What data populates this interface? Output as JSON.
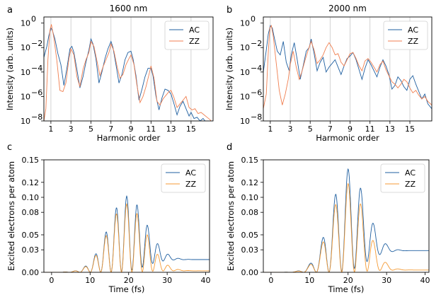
{
  "colors": {
    "AC": "#1f5fa0",
    "ZZ": "#f07f50",
    "ZZ_time": "#f49a34",
    "grid": "#c8c8c8"
  },
  "chart_data": [
    {
      "panel_letter": "a",
      "type": "line",
      "title": "1600 nm",
      "xlabel": "Harmonic order",
      "ylabel": "Intensity (arb. units)",
      "xlim": [
        0.3,
        17.2
      ],
      "ylog": true,
      "ylim_exp": [
        -8,
        0.5
      ],
      "xticks": [
        1,
        3,
        5,
        7,
        9,
        11,
        13,
        15
      ],
      "xtick_labels": [
        "1",
        "3",
        "5",
        "7",
        "9",
        "11",
        "13",
        "15"
      ],
      "yticks_exp": [
        -8,
        -6,
        -4,
        -2,
        0
      ],
      "ytick_labels": [
        "10",
        "10",
        "10",
        "10",
        "10"
      ],
      "ytick_sups": [
        "−8",
        "−6",
        "−4",
        "−2",
        "0"
      ],
      "vgrid": true,
      "legend_placement": "top-right",
      "series": [
        {
          "name": "AC",
          "x": [
            0.3,
            0.6,
            0.8,
            1.0,
            1.15,
            1.4,
            1.7,
            2.0,
            2.3,
            2.6,
            2.9,
            3.1,
            3.3,
            3.6,
            3.9,
            4.2,
            4.5,
            4.8,
            5.0,
            5.2,
            5.5,
            5.8,
            6.1,
            6.4,
            6.7,
            7.0,
            7.2,
            7.5,
            7.8,
            8.1,
            8.4,
            8.7,
            9.0,
            9.2,
            9.5,
            9.8,
            10.1,
            10.4,
            10.7,
            11.0,
            11.2,
            11.5,
            11.8,
            12.1,
            12.4,
            12.7,
            13.0,
            13.3,
            13.6,
            13.9,
            14.2,
            14.5,
            14.8,
            15.0,
            15.3,
            15.6,
            15.9,
            16.2,
            16.5,
            16.8,
            17.2
          ],
          "y_exp": [
            -2.8,
            -1.9,
            -1.0,
            -0.4,
            -0.6,
            -1.3,
            -2.5,
            -3.4,
            -5.1,
            -3.7,
            -2.1,
            -1.9,
            -2.4,
            -3.8,
            -5.3,
            -4.4,
            -3.2,
            -2.2,
            -1.3,
            -1.7,
            -2.9,
            -4.9,
            -4.0,
            -2.9,
            -2.1,
            -1.5,
            -2.0,
            -3.4,
            -4.9,
            -4.2,
            -3.0,
            -2.4,
            -2.3,
            -2.9,
            -4.3,
            -6.3,
            -5.4,
            -4.4,
            -3.7,
            -3.7,
            -4.3,
            -6.0,
            -7.1,
            -6.1,
            -5.4,
            -5.5,
            -5.8,
            -6.6,
            -7.5,
            -6.8,
            -6.4,
            -7.0,
            -7.6,
            -7.3,
            -7.8,
            -7.7,
            -8.0,
            -7.8,
            -8.1,
            -8.2,
            -8.3
          ]
        },
        {
          "name": "ZZ",
          "x": [
            0.3,
            0.5,
            0.7,
            0.9,
            1.05,
            1.3,
            1.6,
            1.9,
            2.2,
            2.5,
            2.8,
            3.0,
            3.3,
            3.6,
            3.9,
            4.2,
            4.5,
            4.8,
            5.0,
            5.3,
            5.6,
            5.9,
            6.2,
            6.5,
            6.8,
            7.0,
            7.3,
            7.6,
            7.9,
            8.2,
            8.5,
            8.8,
            9.0,
            9.3,
            9.6,
            9.9,
            10.2,
            10.5,
            10.8,
            11.0,
            11.3,
            11.6,
            11.9,
            12.2,
            12.5,
            12.8,
            13.0,
            13.3,
            13.6,
            13.9,
            14.2,
            14.5,
            14.8,
            15.1,
            15.4,
            15.7,
            16.0,
            16.3,
            16.6,
            16.9,
            17.2
          ],
          "y_exp": [
            -8.0,
            -7.0,
            -3.0,
            -0.6,
            -0.1,
            -1.2,
            -3.1,
            -5.5,
            -5.6,
            -4.9,
            -2.9,
            -2.1,
            -2.6,
            -4.4,
            -5.2,
            -3.8,
            -3.0,
            -2.4,
            -1.5,
            -1.9,
            -3.1,
            -4.3,
            -3.6,
            -3.0,
            -2.4,
            -1.7,
            -2.3,
            -3.5,
            -4.5,
            -4.2,
            -3.4,
            -2.9,
            -2.6,
            -3.4,
            -5.1,
            -6.5,
            -6.0,
            -5.2,
            -4.2,
            -3.5,
            -4.5,
            -6.4,
            -6.7,
            -6.2,
            -5.9,
            -5.6,
            -5.5,
            -6.1,
            -6.9,
            -6.6,
            -6.3,
            -6.0,
            -6.9,
            -7.1,
            -7.0,
            -7.4,
            -7.3,
            -7.5,
            -7.7,
            -7.9,
            -8.2
          ]
        }
      ]
    },
    {
      "panel_letter": "b",
      "type": "line",
      "title": "2000 nm",
      "xlabel": "Harmonic order",
      "ylabel": "Intensity (arb. units)",
      "xlim": [
        0.3,
        17.2
      ],
      "ylog": true,
      "ylim_exp": [
        -8,
        0.5
      ],
      "xticks": [
        1,
        3,
        5,
        7,
        9,
        11,
        13,
        15
      ],
      "xtick_labels": [
        "1",
        "3",
        "5",
        "7",
        "9",
        "11",
        "13",
        "15"
      ],
      "yticks_exp": [
        -8,
        -6,
        -4,
        -2,
        0
      ],
      "ytick_labels": [
        "10",
        "10",
        "10",
        "10",
        "10"
      ],
      "ytick_sups": [
        "−8",
        "−6",
        "−4",
        "−2",
        "0"
      ],
      "vgrid": true,
      "legend_placement": "top-right",
      "series": [
        {
          "name": "AC",
          "x": [
            0.3,
            0.6,
            0.8,
            1.0,
            1.2,
            1.4,
            1.7,
            2.0,
            2.3,
            2.6,
            2.9,
            3.1,
            3.4,
            3.7,
            4.0,
            4.3,
            4.6,
            4.9,
            5.1,
            5.4,
            5.7,
            6.0,
            6.3,
            6.6,
            6.9,
            7.2,
            7.5,
            7.8,
            8.1,
            8.4,
            8.7,
            9.0,
            9.3,
            9.6,
            9.9,
            10.2,
            10.5,
            10.8,
            11.1,
            11.4,
            11.7,
            12.0,
            12.3,
            12.6,
            12.9,
            13.2,
            13.5,
            13.8,
            14.1,
            14.4,
            14.7,
            15.0,
            15.3,
            15.6,
            15.9,
            16.2,
            16.5,
            16.8,
            17.2
          ],
          "y_exp": [
            -4.0,
            -2.2,
            -0.9,
            -0.2,
            -0.4,
            -1.2,
            -2.3,
            -2.6,
            -1.5,
            -3.2,
            -3.9,
            -2.6,
            -1.6,
            -3.0,
            -4.6,
            -3.5,
            -2.3,
            -2.0,
            -1.3,
            -2.5,
            -3.9,
            -3.2,
            -2.8,
            -4.0,
            -3.6,
            -3.3,
            -3.0,
            -3.6,
            -4.2,
            -3.5,
            -2.9,
            -2.7,
            -2.4,
            -3.0,
            -3.8,
            -4.6,
            -3.7,
            -3.0,
            -3.4,
            -3.9,
            -4.4,
            -3.6,
            -3.0,
            -3.5,
            -4.2,
            -5.4,
            -5.1,
            -4.4,
            -4.7,
            -5.2,
            -5.5,
            -4.6,
            -4.3,
            -5.0,
            -5.6,
            -6.2,
            -5.8,
            -6.6,
            -7.0
          ]
        },
        {
          "name": "ZZ",
          "x": [
            0.3,
            0.6,
            0.8,
            0.95,
            1.1,
            1.3,
            1.6,
            1.9,
            2.2,
            2.5,
            2.8,
            3.0,
            3.3,
            3.6,
            3.9,
            4.2,
            4.5,
            4.8,
            5.1,
            5.4,
            5.7,
            6.0,
            6.3,
            6.6,
            6.9,
            7.2,
            7.5,
            7.8,
            8.1,
            8.4,
            8.7,
            9.0,
            9.3,
            9.6,
            9.9,
            10.2,
            10.5,
            10.8,
            11.1,
            11.4,
            11.7,
            12.0,
            12.3,
            12.6,
            12.9,
            13.2,
            13.5,
            13.8,
            14.1,
            14.4,
            14.7,
            15.0,
            15.3,
            15.6,
            15.9,
            16.2,
            16.5,
            16.8,
            17.2
          ],
          "y_exp": [
            -7.0,
            -5.8,
            -2.4,
            -0.4,
            -0.2,
            -1.1,
            -3.3,
            -5.5,
            -6.7,
            -5.8,
            -4.6,
            -3.4,
            -2.3,
            -3.6,
            -4.6,
            -3.9,
            -3.0,
            -2.2,
            -1.5,
            -2.2,
            -3.3,
            -3.0,
            -2.6,
            -2.0,
            -1.6,
            -2.0,
            -2.6,
            -2.5,
            -3.2,
            -3.5,
            -3.0,
            -2.5,
            -2.4,
            -2.9,
            -3.5,
            -3.9,
            -3.1,
            -2.9,
            -3.2,
            -3.6,
            -4.0,
            -3.4,
            -3.1,
            -3.8,
            -4.3,
            -4.8,
            -5.0,
            -5.3,
            -5.0,
            -4.6,
            -4.8,
            -5.3,
            -5.7,
            -5.5,
            -5.9,
            -6.2,
            -6.0,
            -6.4,
            -6.7
          ]
        }
      ]
    },
    {
      "panel_letter": "c",
      "type": "line",
      "xlabel": "Time (fs)",
      "ylabel": "Excited electrons per atom",
      "xlim": [
        -2,
        41
      ],
      "ylim": [
        0,
        0.15
      ],
      "xticks": [
        0,
        10,
        20,
        30,
        40
      ],
      "xtick_labels": [
        "0",
        "10",
        "20",
        "30",
        "40"
      ],
      "yticks": [
        0,
        0.03,
        0.05,
        0.08,
        0.1,
        0.12,
        0.15
      ],
      "ytick_labels": [
        "0.00",
        "0.03",
        "0.05",
        "0.08",
        "0.10",
        "0.12",
        "0.15"
      ],
      "vgrid": false,
      "legend_placement": "top-right",
      "series": [
        {
          "name": "AC",
          "final": 0.017,
          "envelope_peak": 0.1,
          "envelope_center": 19.5,
          "envelope_width": 6.8,
          "period": 2.7
        },
        {
          "name": "ZZ",
          "final": 0.002,
          "envelope_peak": 0.091,
          "envelope_center": 19.5,
          "envelope_width": 6.8,
          "period": 2.7
        }
      ]
    },
    {
      "panel_letter": "d",
      "type": "line",
      "xlabel": "Time (fs)",
      "ylabel": "Excited electrons per atom",
      "xlim": [
        -2,
        41
      ],
      "ylim": [
        0,
        0.15
      ],
      "xticks": [
        0,
        10,
        20,
        30,
        40
      ],
      "xtick_labels": [
        "0",
        "10",
        "20",
        "30",
        "40"
      ],
      "yticks": [
        0,
        0.03,
        0.05,
        0.08,
        0.1,
        0.12,
        0.15
      ],
      "ytick_labels": [
        "0.00",
        "0.03",
        "0.05",
        "0.08",
        "0.10",
        "0.12",
        "0.15"
      ],
      "vgrid": false,
      "legend_placement": "top-right",
      "series": [
        {
          "name": "AC",
          "final": 0.029,
          "envelope_peak": 0.135,
          "envelope_center": 20,
          "envelope_width": 6.3,
          "period": 3.3
        },
        {
          "name": "ZZ",
          "final": 0.003,
          "envelope_peak": 0.118,
          "envelope_center": 20,
          "envelope_width": 6.3,
          "period": 3.3
        }
      ]
    }
  ]
}
